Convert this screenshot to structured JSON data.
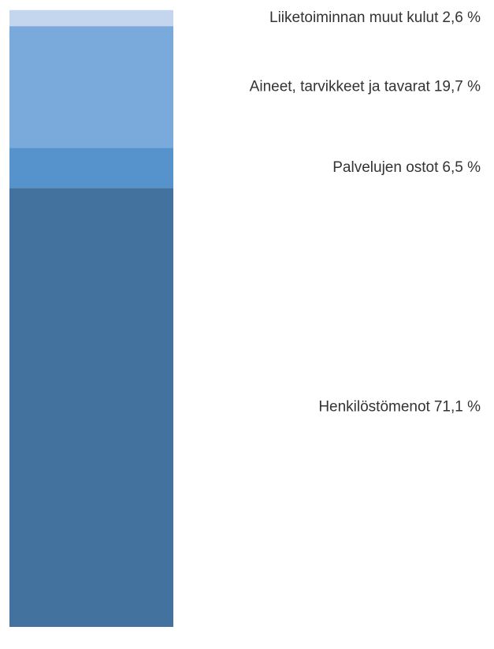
{
  "chart_data": {
    "type": "stacked-bar",
    "ylim": [
      0,
      100
    ],
    "series": [
      {
        "name": "Henkilöstömenot",
        "color": "#44729e",
        "values": [
          71.1
        ],
        "value_labels": [
          "71,1 %"
        ]
      },
      {
        "name": "Palvelujen ostot",
        "color": "#5693cc",
        "values": [
          6.5
        ],
        "value_labels": [
          "6,5 %"
        ]
      },
      {
        "name": "Aineet, tarvikkeet ja tavarat",
        "color": "#7aaadb",
        "values": [
          19.7
        ],
        "value_labels": [
          "19,7 %"
        ]
      },
      {
        "name": "Liiketoiminnan muut kulut",
        "color": "#c4d5ee",
        "values": [
          2.6
        ],
        "value_labels": [
          "2,6 %"
        ]
      }
    ]
  }
}
